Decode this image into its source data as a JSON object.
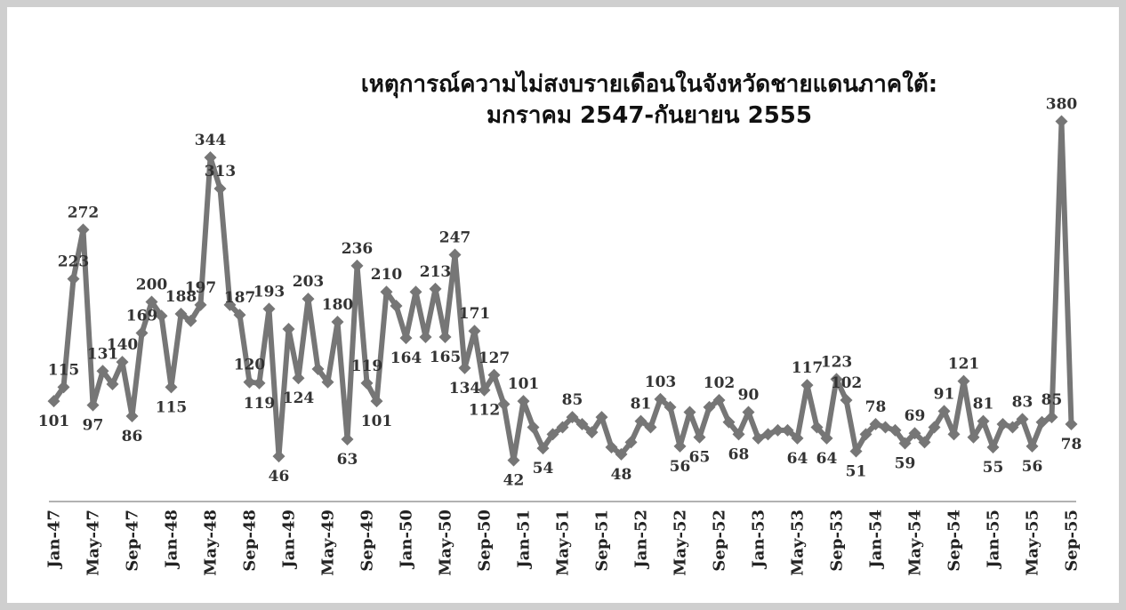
{
  "chart_data": {
    "type": "line",
    "title": "เหตุการณ์ความไม่สงบรายเดือนในจังหวัดชายแดนภาคใต้:",
    "subtitle": "มกราคม 2547-กันยายน 2555",
    "categories": [
      "Jan-47",
      null,
      null,
      null,
      "May-47",
      null,
      null,
      null,
      "Sep-47",
      null,
      null,
      null,
      "Jan-48",
      null,
      null,
      null,
      "May-48",
      null,
      null,
      null,
      "Sep-48",
      null,
      null,
      null,
      "Jan-49",
      null,
      null,
      null,
      "May-49",
      null,
      null,
      null,
      "Sep-49",
      null,
      null,
      null,
      "Jan-50",
      null,
      null,
      null,
      "May-50",
      null,
      null,
      null,
      "Sep-50",
      null,
      null,
      null,
      "Jan-51",
      null,
      null,
      null,
      "May-51",
      null,
      null,
      null,
      "Sep-51",
      null,
      null,
      null,
      "Jan-52",
      null,
      null,
      null,
      "May-52",
      null,
      null,
      null,
      "Sep-52",
      null,
      null,
      null,
      "Jan-53",
      null,
      null,
      null,
      "May-53",
      null,
      null,
      null,
      "Sep-53",
      null,
      null,
      null,
      "Jan-54",
      null,
      null,
      null,
      "May-54",
      null,
      null,
      null,
      "Sep-54",
      null,
      null,
      null,
      "Jan-55",
      null,
      null,
      null,
      "May-55",
      null,
      null,
      null,
      "Sep-55"
    ],
    "values": [
      101,
      115,
      223,
      272,
      97,
      131,
      118,
      140,
      86,
      169,
      200,
      186,
      115,
      188,
      181,
      197,
      344,
      313,
      197,
      187,
      120,
      119,
      193,
      46,
      173,
      124,
      203,
      133,
      120,
      180,
      63,
      236,
      119,
      101,
      210,
      196,
      164,
      210,
      165,
      213,
      165,
      247,
      134,
      171,
      112,
      127,
      98,
      42,
      101,
      75,
      54,
      68,
      75,
      85,
      78,
      70,
      85,
      55,
      48,
      60,
      81,
      75,
      103,
      95,
      56,
      90,
      65,
      95,
      102,
      80,
      68,
      90,
      64,
      68,
      72,
      72,
      64,
      117,
      75,
      64,
      123,
      102,
      51,
      68,
      78,
      75,
      72,
      59,
      69,
      60,
      75,
      91,
      68,
      121,
      65,
      81,
      55,
      78,
      75,
      83,
      56,
      80,
      85,
      380,
      78
    ],
    "value_labels": [
      "101",
      "115",
      "223",
      "272",
      "97",
      "131",
      null,
      "140",
      "86",
      "169",
      "200",
      null,
      "115",
      "188",
      null,
      "197",
      "344",
      "313",
      null,
      "187",
      "120",
      "119",
      "193",
      "46",
      null,
      "124",
      "203",
      null,
      null,
      "180",
      "63",
      "236",
      "119",
      "101",
      "210",
      null,
      "164",
      null,
      null,
      "213",
      "165",
      "247",
      "134",
      "171",
      "112",
      "127",
      null,
      "42",
      "101",
      null,
      "54",
      null,
      null,
      "85",
      null,
      null,
      null,
      null,
      "48",
      null,
      "81",
      null,
      "103",
      null,
      "56",
      null,
      "65",
      null,
      "102",
      null,
      "68",
      "90",
      null,
      null,
      null,
      null,
      "64",
      "117",
      null,
      "64",
      "123",
      "102",
      "51",
      null,
      "78",
      null,
      null,
      "59",
      "69",
      null,
      null,
      "91",
      null,
      "121",
      null,
      "81",
      "55",
      null,
      null,
      "83",
      "56",
      null,
      "85",
      "380",
      "78"
    ],
    "color": "#767676",
    "ylim": [
      0,
      400
    ]
  }
}
